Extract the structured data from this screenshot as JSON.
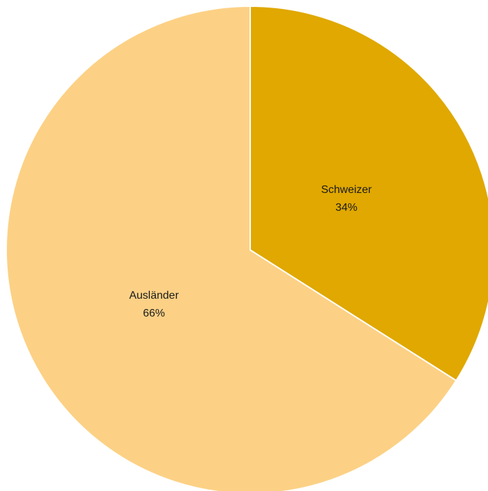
{
  "chart_data": {
    "type": "pie",
    "categories": [
      "Schweizer",
      "Ausländer"
    ],
    "values": [
      34,
      66
    ],
    "value_labels": [
      "34%",
      "66%"
    ],
    "colors": [
      "#E0A800",
      "#FCD185"
    ],
    "start_angle_deg": 0,
    "direction": "clockwise",
    "title": "",
    "legend": "none"
  }
}
